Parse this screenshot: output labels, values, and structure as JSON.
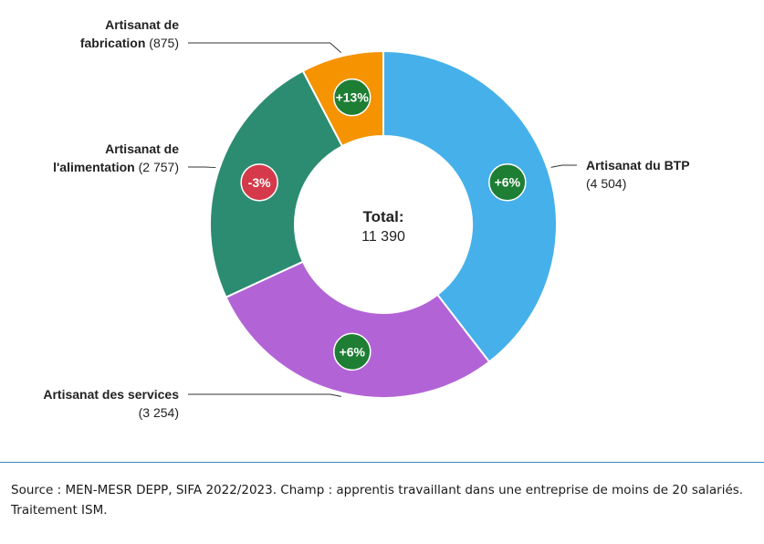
{
  "chart_data": {
    "type": "pie",
    "donut": true,
    "total_label": "Total:",
    "total_value": "11 390",
    "slices": [
      {
        "name_lines": [
          "Artisanat du BTP"
        ],
        "value_text": "(4 504)",
        "value": 4504,
        "change": "+6%",
        "color": "#46b0ea",
        "badge_color": "#1e7e34"
      },
      {
        "name_lines": [
          "Artisanat des services"
        ],
        "value_text": "(3 254)",
        "value": 3254,
        "change": "+6%",
        "color": "#b264d6",
        "badge_color": "#1e7e34"
      },
      {
        "name_lines": [
          "Artisanat de",
          "l'alimentation"
        ],
        "value_text": "(2 757)",
        "value": 2757,
        "change": "-3%",
        "color": "#2c8c72",
        "badge_color": "#d43a4a"
      },
      {
        "name_lines": [
          "Artisanat de",
          "fabrication"
        ],
        "value_text": "(875)",
        "value": 875,
        "change": "+13%",
        "color": "#f59300",
        "badge_color": "#1e7e34"
      }
    ]
  },
  "footer": {
    "source": "Source : MEN-MESR DEPP, SIFA 2022/2023. Champ : apprentis travaillant dans une entreprise de moins de 20 salariés. Traitement ISM."
  }
}
